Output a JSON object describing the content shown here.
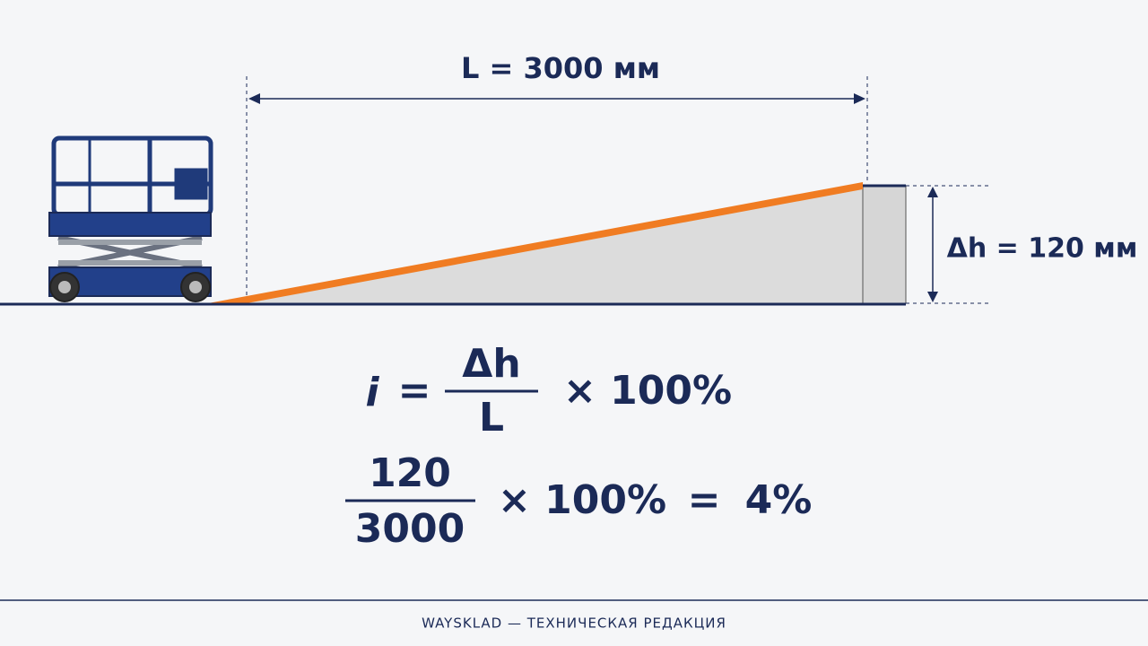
{
  "dimensions": {
    "length": "L = 3000 мм",
    "height": "Δh = 120 мм"
  },
  "formula": {
    "lhs": "i",
    "eq": "=",
    "numerator": "Δh",
    "denominator": "L",
    "times": "× 100%"
  },
  "calculation": {
    "numerator": "120",
    "denominator": "3000",
    "times": "× 100%",
    "eq": "=",
    "result": "4%"
  },
  "footer": "WAYSKLAD — ТЕХНИЧЕСКАЯ РЕДАКЦИЯ"
}
